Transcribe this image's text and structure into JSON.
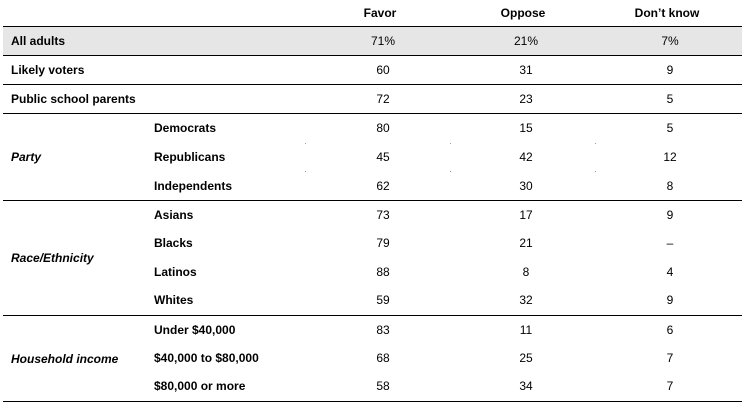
{
  "columns": [
    "Favor",
    "Oppose",
    "Don’t know"
  ],
  "rows": [
    {
      "label": "All adults",
      "favor": "71%",
      "oppose": "21%",
      "dontknow": "7%"
    },
    {
      "label": "Likely voters",
      "favor": "60",
      "oppose": "31",
      "dontknow": "9"
    },
    {
      "label": "Public school parents",
      "favor": "72",
      "oppose": "23",
      "dontknow": "5"
    }
  ],
  "groups": [
    {
      "name": "Party",
      "items": [
        {
          "label": "Democrats",
          "favor": "80",
          "oppose": "15",
          "dontknow": "5"
        },
        {
          "label": "Republicans",
          "favor": "45",
          "oppose": "42",
          "dontknow": "12"
        },
        {
          "label": "Independents",
          "favor": "62",
          "oppose": "30",
          "dontknow": "8"
        }
      ]
    },
    {
      "name": "Race/Ethnicity",
      "items": [
        {
          "label": "Asians",
          "favor": "73",
          "oppose": "17",
          "dontknow": "9"
        },
        {
          "label": "Blacks",
          "favor": "79",
          "oppose": "21",
          "dontknow": "–"
        },
        {
          "label": "Latinos",
          "favor": "88",
          "oppose": "8",
          "dontknow": "4"
        },
        {
          "label": "Whites",
          "favor": "59",
          "oppose": "32",
          "dontknow": "9"
        }
      ]
    },
    {
      "name": "Household income",
      "items": [
        {
          "label": "Under $40,000",
          "favor": "83",
          "oppose": "11",
          "dontknow": "6"
        },
        {
          "label": "$40,000 to $80,000",
          "favor": "68",
          "oppose": "25",
          "dontknow": "7"
        },
        {
          "label": "$80,000 or more",
          "favor": "58",
          "oppose": "34",
          "dontknow": "7"
        }
      ]
    }
  ]
}
